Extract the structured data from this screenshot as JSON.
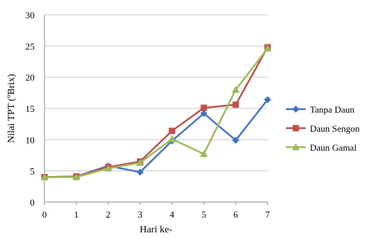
{
  "chart_data": {
    "type": "line",
    "title": "",
    "xlabel": "Hari ke-",
    "ylabel": "Nilai TPT (ºBrix)",
    "x": [
      0,
      1,
      2,
      3,
      4,
      5,
      6,
      7
    ],
    "xlim": [
      0,
      7
    ],
    "ylim": [
      0,
      30
    ],
    "yticks": [
      0,
      5,
      10,
      15,
      20,
      25,
      30
    ],
    "grid": "horizontal",
    "legend": "right",
    "series": [
      {
        "name": "Tanpa Daun",
        "color": "#4472C4",
        "marker": "diamond",
        "values": [
          4.0,
          4.1,
          5.8,
          4.8,
          9.8,
          14.2,
          9.9,
          16.4
        ]
      },
      {
        "name": "Daun Sengon",
        "color": "#C0504D",
        "marker": "square",
        "values": [
          4.0,
          4.1,
          5.6,
          6.5,
          11.4,
          15.1,
          15.6,
          24.8
        ]
      },
      {
        "name": "Daun Gamal",
        "color": "#9BBB59",
        "marker": "triangle",
        "values": [
          4.0,
          4.0,
          5.4,
          6.3,
          10.1,
          7.7,
          18.0,
          24.6
        ]
      }
    ]
  }
}
